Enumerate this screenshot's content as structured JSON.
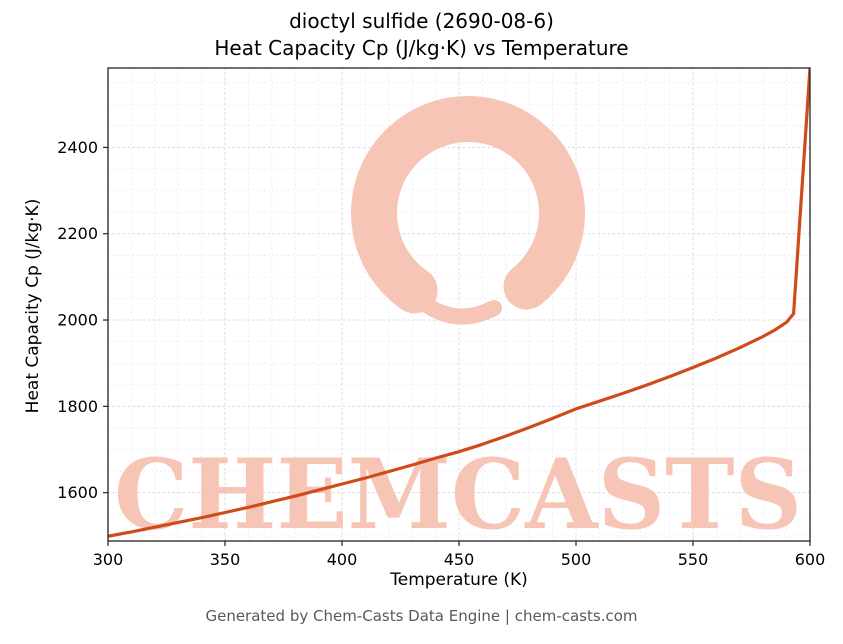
{
  "title": {
    "line1": "dioctyl sulfide (2690-08-6)",
    "line2": "Heat Capacity Cp (J/kg·K) vs Temperature"
  },
  "footer": "Generated by Chem-Casts Data Engine | chem-casts.com",
  "watermark": {
    "text": "CHEMCASTS",
    "color": "#f6c5b6"
  },
  "chart_data": {
    "type": "line",
    "title": "dioctyl sulfide (2690-08-6) — Heat Capacity Cp (J/kg·K) vs Temperature",
    "xlabel": "Temperature (K)",
    "ylabel": "Heat Capacity Cp (J/kg·K)",
    "xlim": [
      300,
      600
    ],
    "ylim": [
      1488,
      2584
    ],
    "xticks": [
      300,
      350,
      400,
      450,
      500,
      550,
      600
    ],
    "yticks": [
      1600,
      1800,
      2000,
      2200,
      2400
    ],
    "grid": true,
    "legend": "none",
    "line_color": "#cf4c1a",
    "series": [
      {
        "name": "Cp",
        "x": [
          300,
          310,
          320,
          330,
          340,
          350,
          360,
          370,
          380,
          390,
          400,
          410,
          420,
          430,
          440,
          450,
          460,
          470,
          480,
          490,
          500,
          510,
          520,
          530,
          540,
          550,
          560,
          570,
          580,
          585,
          590,
          593,
          600
        ],
        "y": [
          1499,
          1509,
          1520,
          1531,
          1542,
          1554,
          1566,
          1579,
          1592,
          1606,
          1620,
          1634,
          1649,
          1664,
          1680,
          1695,
          1712,
          1731,
          1751,
          1772,
          1794,
          1812,
          1830,
          1849,
          1869,
          1890,
          1912,
          1936,
          1962,
          1977,
          1995,
          2015,
          2584
        ]
      }
    ]
  }
}
